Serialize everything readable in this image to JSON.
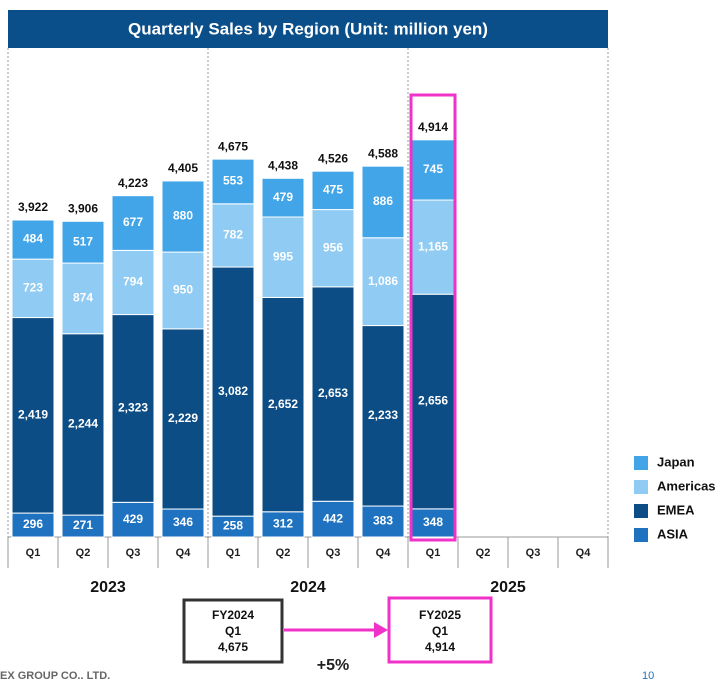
{
  "chart_data": {
    "type": "stacked_bar",
    "title": "Quarterly Sales by Region (Unit: million yen)",
    "categories": [
      "Q1",
      "Q2",
      "Q3",
      "Q4",
      "Q1",
      "Q2",
      "Q3",
      "Q4",
      "Q1",
      "Q2",
      "Q3",
      "Q4"
    ],
    "groups": [
      "2023",
      "2024",
      "2025"
    ],
    "series": [
      {
        "name": "Japan",
        "color": "#41a5e8",
        "values": [
          484,
          517,
          677,
          880,
          553,
          479,
          475,
          886,
          745,
          null,
          null,
          null
        ],
        "value_labels": [
          "484",
          "517",
          "677",
          "880",
          "553",
          "479",
          "475",
          "886",
          "745",
          null,
          null,
          null
        ]
      },
      {
        "name": "Americas",
        "color": "#8fcbf2",
        "values": [
          723,
          874,
          794,
          950,
          782,
          995,
          956,
          1086,
          1165,
          null,
          null,
          null
        ],
        "value_labels": [
          "723",
          "874",
          "794",
          "950",
          "782",
          "995",
          "956",
          "1,086",
          "1,165",
          null,
          null,
          null
        ]
      },
      {
        "name": "EMEA",
        "color": "#0c4d86",
        "values": [
          2419,
          2244,
          2323,
          2229,
          3082,
          2652,
          2653,
          2233,
          2656,
          null,
          null,
          null
        ],
        "value_labels": [
          "2,419",
          "2,244",
          "2,323",
          "2,229",
          "3,082",
          "2,652",
          "2,653",
          "2,233",
          "2,656",
          null,
          null,
          null
        ]
      },
      {
        "name": "ASIA",
        "color": "#1f72c0",
        "values": [
          296,
          271,
          429,
          346,
          258,
          312,
          442,
          383,
          348,
          null,
          null,
          null
        ],
        "value_labels": [
          "296",
          "271",
          "429",
          "346",
          "258",
          "312",
          "442",
          "383",
          "348",
          null,
          null,
          null
        ]
      }
    ],
    "totals": [
      3922,
      3906,
      4223,
      4405,
      4675,
      4438,
      4526,
      4588,
      4914,
      null,
      null,
      null
    ],
    "total_labels": [
      "3,922",
      "3,906",
      "4,223",
      "4,405",
      "4,675",
      "4,438",
      "4,526",
      "4,588",
      "4,914",
      null,
      null,
      null
    ],
    "ylim": [
      0,
      6050
    ],
    "highlight_color": "#f032c8",
    "comparison": {
      "from": [
        "FY2024",
        "Q1",
        "4,675"
      ],
      "to": [
        "FY2025",
        "Q1",
        "4,914"
      ],
      "change": "+5%"
    },
    "footer": "EX GROUP CO.. LTD.",
    "page_number": "10"
  }
}
